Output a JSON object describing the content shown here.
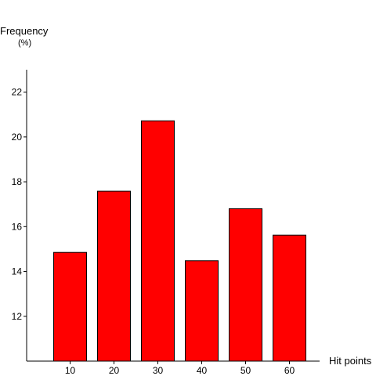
{
  "chart_data": {
    "type": "bar",
    "categories": [
      "10",
      "20",
      "30",
      "40",
      "50",
      "60"
    ],
    "values": [
      14.85,
      17.58,
      20.72,
      14.48,
      16.8,
      15.62
    ],
    "ylabel_line1": "Frequency",
    "ylabel_line2": "(%)",
    "xlabel": "Hit points",
    "ylim": [
      10.0,
      23.0
    ],
    "yticks": [
      12,
      14,
      16,
      18,
      20,
      22
    ],
    "bar_color": "#ff0000",
    "grid": false,
    "legend": false
  }
}
